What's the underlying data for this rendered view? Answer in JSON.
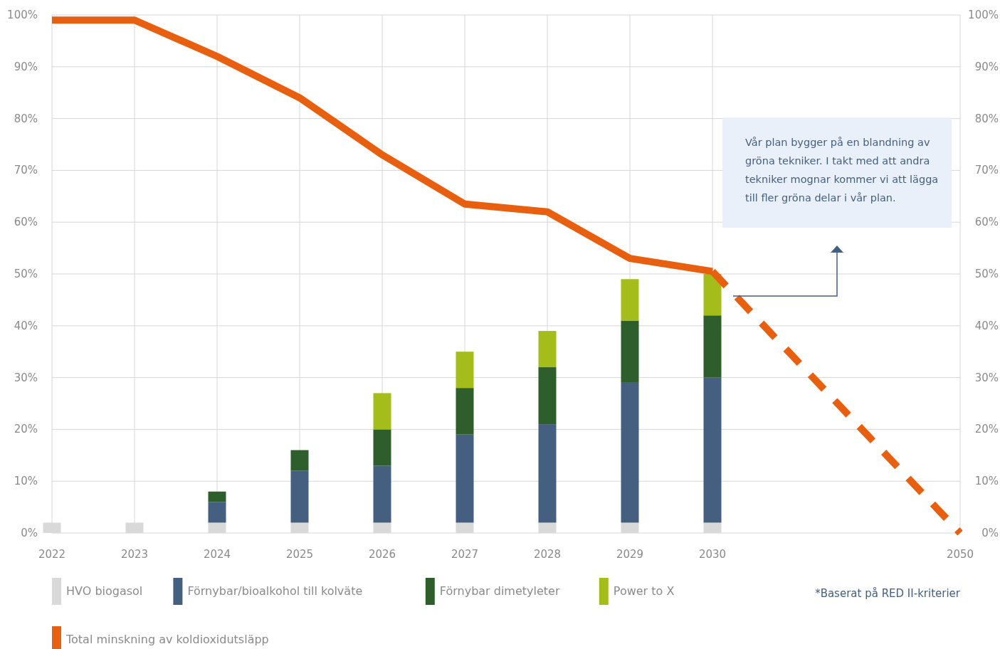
{
  "chart_data": {
    "type": "bar",
    "stacked": true,
    "categories": [
      "2022",
      "2023",
      "2024",
      "2025",
      "2026",
      "2027",
      "2028",
      "2029",
      "2030",
      null,
      null,
      "2050"
    ],
    "series": [
      {
        "name": "HVO biogasol",
        "color": "#d9d9d9",
        "values": [
          2,
          2,
          2,
          2,
          2,
          2,
          2,
          2,
          2,
          null,
          null,
          null
        ]
      },
      {
        "name": "Förnybar/bioalkohol till kolväte",
        "color": "#445f80",
        "values": [
          null,
          null,
          4,
          10,
          11,
          17,
          19,
          27,
          28,
          null,
          null,
          null
        ]
      },
      {
        "name": "Förnybar dimetyleter",
        "color": "#2e5e2b",
        "values": [
          null,
          null,
          2,
          4,
          7,
          9,
          11,
          12,
          12,
          null,
          null,
          null
        ]
      },
      {
        "name": "Power to X",
        "color": "#a4bd1a",
        "values": [
          null,
          null,
          null,
          null,
          7,
          7,
          7,
          8,
          8,
          null,
          null,
          null
        ]
      },
      {
        "name": "Total minskning av koldioxidutsläpp",
        "type": "line",
        "line_style": "solid",
        "color": "#e8600f",
        "values": [
          99,
          99,
          92,
          84,
          73,
          63.5,
          62,
          53,
          50.5,
          null,
          null,
          null
        ]
      },
      {
        "type": "line",
        "line_style": "dashed",
        "color": "#e8600f",
        "values": [
          null,
          null,
          null,
          null,
          null,
          null,
          null,
          null,
          50.5,
          null,
          null,
          0
        ]
      }
    ],
    "ylim": [
      0,
      100
    ],
    "yticks": [
      {
        "value": 0,
        "label": "0%"
      },
      {
        "value": 10,
        "label": "10%"
      },
      {
        "value": 20,
        "label": "20%"
      },
      {
        "value": 30,
        "label": "30%"
      },
      {
        "value": 40,
        "label": "40%"
      },
      {
        "value": 50,
        "label": "50%"
      },
      {
        "value": 60,
        "label": "60%"
      },
      {
        "value": 70,
        "label": "70%"
      },
      {
        "value": 80,
        "label": "80%"
      },
      {
        "value": 90,
        "label": "90%"
      },
      {
        "value": 100,
        "label": "100%"
      }
    ],
    "y2lim": [
      0,
      100
    ],
    "y2ticks": [
      {
        "value": 0,
        "label": "0%"
      },
      {
        "value": 10,
        "label": "10%"
      },
      {
        "value": 20,
        "label": "20%"
      },
      {
        "value": 30,
        "label": "30%"
      },
      {
        "value": 40,
        "label": "40%"
      },
      {
        "value": 50,
        "label": "50%"
      },
      {
        "value": 60,
        "label": "60%"
      },
      {
        "value": 70,
        "label": "70%"
      },
      {
        "value": 80,
        "label": "80%"
      },
      {
        "value": 90,
        "label": "90%"
      },
      {
        "value": 100,
        "label": "100%"
      }
    ],
    "grid": true,
    "legend": "bottom",
    "annotations": [
      "Vår plan bygger på en blandning av gröna tekniker. I takt med att andra tekniker mognar kommer vi att lägga till fler gröna delar i vår plan.",
      "*Baserat på RED II-kriterier"
    ]
  }
}
